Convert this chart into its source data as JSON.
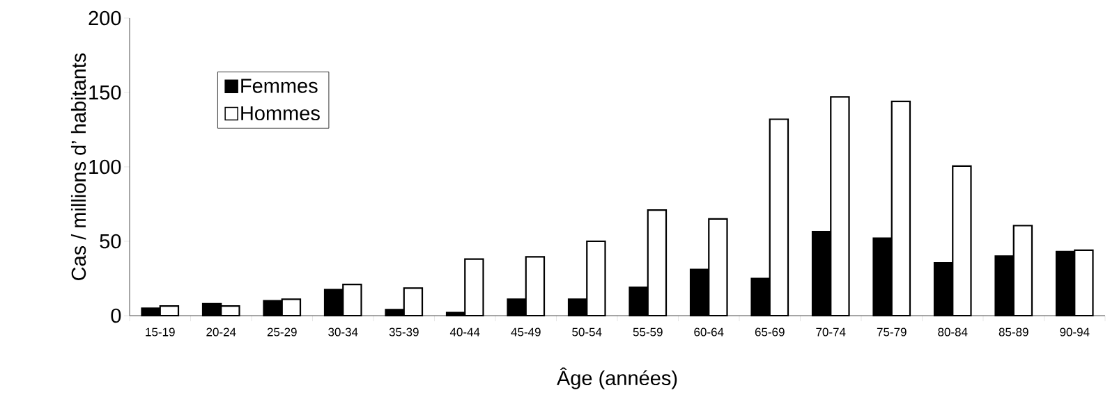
{
  "chart_data": {
    "type": "bar",
    "xlabel": "Âge (années)",
    "ylabel": "Cas / millions d’ habitants",
    "categories": [
      "15-19",
      "20-24",
      "25-29",
      "30-34",
      "35-39",
      "40-44",
      "45-49",
      "50-54",
      "55-59",
      "60-64",
      "65-69",
      "70-74",
      "75-79",
      "80-84",
      "85-89",
      "90-94"
    ],
    "series": [
      {
        "name": "Femmes",
        "color": "#000000",
        "values": [
          5,
          8,
          10,
          17.5,
          4,
          2,
          11,
          11,
          19,
          31,
          25,
          56.5,
          52,
          35.5,
          40,
          43
        ]
      },
      {
        "name": "Hommes",
        "color": "#ffffff",
        "values": [
          6.5,
          6.5,
          11,
          21,
          18.5,
          38,
          39.5,
          50,
          71,
          65,
          132,
          147,
          144,
          100.5,
          60.5,
          44
        ]
      }
    ],
    "ylim": [
      0,
      200
    ],
    "yticks": [
      0,
      50,
      100,
      150,
      200
    ],
    "legend": "top left"
  }
}
